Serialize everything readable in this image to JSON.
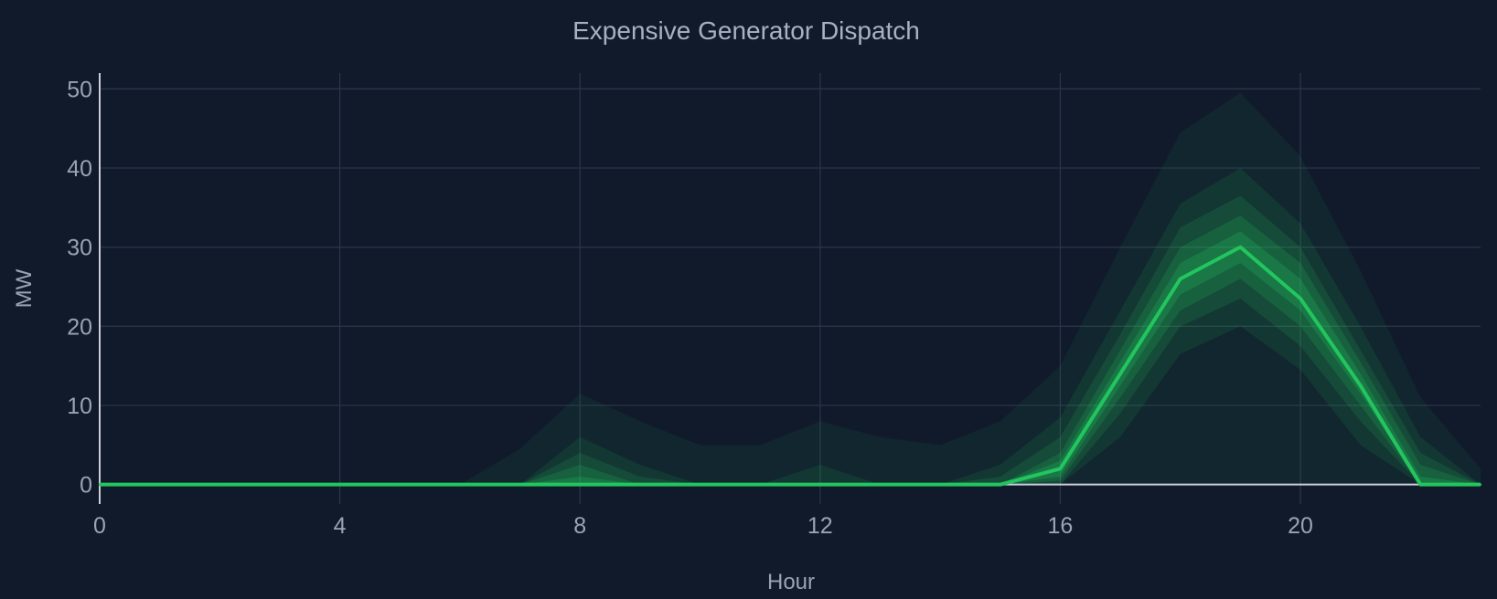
{
  "chart_data": {
    "type": "line",
    "title": "Expensive Generator Dispatch",
    "xlabel": "Hour",
    "ylabel": "MW",
    "xlim": [
      0,
      23
    ],
    "ylim": [
      -2,
      52
    ],
    "xticks": [
      0,
      4,
      8,
      12,
      16,
      20
    ],
    "yticks": [
      0,
      10,
      20,
      30,
      40,
      50
    ],
    "grid": true,
    "colors": {
      "line": "#22c55e",
      "band": "#22c55e",
      "background": "#111a2b",
      "grid": "#2a3447",
      "baseline": "#c9ced8"
    },
    "x": [
      0,
      1,
      2,
      3,
      4,
      5,
      6,
      7,
      8,
      9,
      10,
      11,
      12,
      13,
      14,
      15,
      16,
      17,
      18,
      19,
      20,
      21,
      22,
      23
    ],
    "series": [
      {
        "role": "median",
        "values": [
          0,
          0,
          0,
          0,
          0,
          0,
          0,
          0,
          0,
          0,
          0,
          0,
          0,
          0,
          0,
          0,
          2,
          14,
          26,
          30,
          23.5,
          12.5,
          0,
          0
        ]
      }
    ],
    "bands": [
      {
        "lower": [
          0,
          0,
          0,
          0,
          0,
          0,
          0,
          0,
          0,
          0,
          0,
          0,
          0,
          0,
          0,
          0,
          0,
          0,
          0,
          0,
          0,
          0,
          0,
          0
        ],
        "upper": [
          0,
          0,
          0,
          0,
          0,
          0,
          0,
          4.5,
          11.5,
          8,
          5,
          5,
          8,
          6,
          5,
          8,
          15,
          30,
          44.5,
          49.5,
          41.5,
          27,
          11,
          2
        ]
      },
      {
        "lower": [
          0,
          0,
          0,
          0,
          0,
          0,
          0,
          0,
          0,
          0,
          0,
          0,
          0,
          0,
          0,
          0,
          0,
          6,
          16.5,
          20,
          14.5,
          5,
          0,
          0
        ],
        "upper": [
          0,
          0,
          0,
          0,
          0,
          0,
          0,
          0,
          6,
          2.5,
          0,
          0,
          2.5,
          0,
          0,
          2.5,
          8.5,
          22,
          35.5,
          40,
          33,
          20,
          6,
          0
        ]
      },
      {
        "lower": [
          0,
          0,
          0,
          0,
          0,
          0,
          0,
          0,
          0,
          0,
          0,
          0,
          0,
          0,
          0,
          0,
          0,
          9,
          20,
          23.5,
          17.5,
          8,
          0,
          0
        ],
        "upper": [
          0,
          0,
          0,
          0,
          0,
          0,
          0,
          0,
          4,
          1,
          0,
          0,
          0,
          0,
          0,
          1,
          6,
          19,
          32.5,
          36.5,
          30,
          17,
          4,
          0
        ]
      },
      {
        "lower": [
          0,
          0,
          0,
          0,
          0,
          0,
          0,
          0,
          0,
          0,
          0,
          0,
          0,
          0,
          0,
          0,
          0.5,
          11,
          22,
          26,
          20,
          10,
          0,
          0
        ],
        "upper": [
          0,
          0,
          0,
          0,
          0,
          0,
          0,
          0,
          2.5,
          0,
          0,
          0,
          0,
          0,
          0,
          0,
          4,
          17,
          30,
          34,
          28,
          15.5,
          2.5,
          0
        ],
        "note": ""
      },
      {
        "lower": [
          0,
          0,
          0,
          0,
          0,
          0,
          0,
          0,
          0,
          0,
          0,
          0,
          0,
          0,
          0,
          0,
          1,
          12.5,
          24,
          28,
          22,
          11.5,
          0,
          0
        ],
        "upper": [
          0,
          0,
          0,
          0,
          0,
          0,
          0,
          0,
          1,
          0,
          0,
          0,
          0,
          0,
          0,
          0,
          3,
          15.5,
          28,
          32,
          26,
          14,
          1,
          0
        ]
      }
    ]
  }
}
